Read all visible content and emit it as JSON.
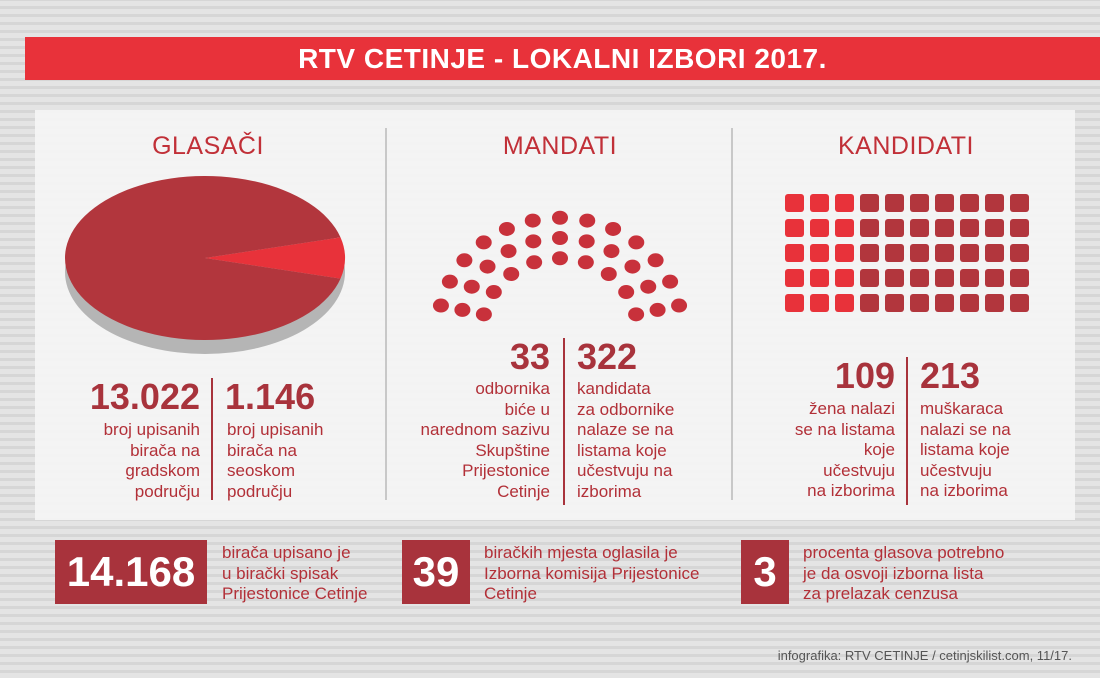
{
  "header": {
    "title": "RTV CETINJE - LOKALNI IZBORI 2017."
  },
  "colors": {
    "accent": "#e8323a",
    "dark_red": "#a8333c",
    "pie_main": "#b2363d",
    "pie_slice": "#e8323a"
  },
  "glasaci": {
    "title": "GLASAČI",
    "chart_data": {
      "type": "pie",
      "categories": [
        "gradsko područje",
        "seosko područje"
      ],
      "values": [
        13022,
        1146
      ]
    },
    "stat1": {
      "number": "13.022",
      "lines": [
        "broj upisanih",
        "birača na",
        "gradskom",
        "području"
      ]
    },
    "stat2": {
      "number": "1.146",
      "lines": [
        "broj upisanih",
        "birača na",
        "seoskom",
        "području"
      ]
    }
  },
  "mandati": {
    "title": "MANDATI",
    "seats": 33,
    "stat1": {
      "number": "33",
      "lines": [
        "odbornika",
        "biće u",
        "narednom sazivu",
        "Skupštine",
        "Prijestonice",
        "Cetinje"
      ]
    },
    "stat2": {
      "number": "322",
      "lines": [
        "kandidata",
        "za odbornike",
        "nalaze se na",
        "listama koje",
        "učestvuju na",
        "izborima"
      ]
    }
  },
  "kandidati": {
    "title": "KANDIDATI",
    "grid": {
      "rows": 5,
      "cols": 10
    },
    "stat1": {
      "number": "109",
      "lines": [
        "žena nalazi",
        "se na listama",
        "koje",
        "učestvuju",
        "na izborima"
      ]
    },
    "stat2": {
      "number": "213",
      "lines": [
        "muškaraca",
        "nalazi se na",
        "listama koje",
        "učestvuju",
        "na izborima"
      ]
    }
  },
  "bottom": [
    {
      "number": "14.168",
      "lines": [
        "birača upisano je",
        "u birački spisak",
        "Prijestonice Cetinje"
      ]
    },
    {
      "number": "39",
      "lines": [
        "biračkih mjesta oglasila je",
        "Izborna komisija Prijestonice",
        "Cetinje"
      ]
    },
    {
      "number": "3",
      "lines": [
        "procenta glasova potrebno",
        "je da osvoji izborna lista",
        "za prelazak cenzusa"
      ]
    }
  ],
  "footer": "infografika: RTV CETINJE / cetinjskilist.com, 11/17."
}
